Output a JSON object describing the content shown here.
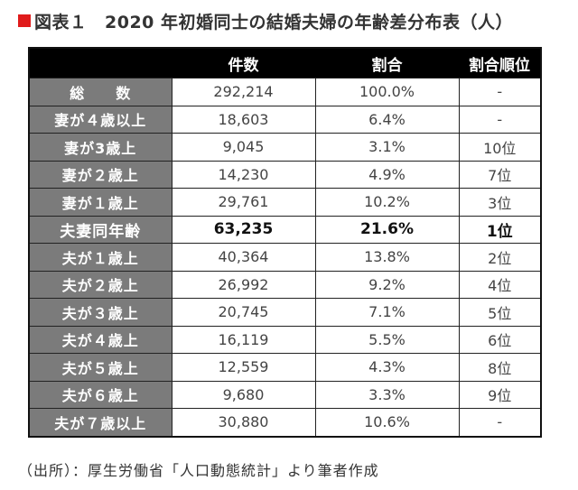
{
  "title": {
    "marker_color": "#e01b1b",
    "text": "図表１　2020 年初婚同士の結婚夫婦の年齢差分布表（人）"
  },
  "table": {
    "headers": [
      "",
      "件数",
      "割合",
      "割合順位"
    ],
    "rows": [
      {
        "label": "総　　数",
        "count": "292,214",
        "ratio": "100.0%",
        "rank": "-"
      },
      {
        "label": "妻が４歳以上",
        "count": "18,603",
        "ratio": "6.4%",
        "rank": "-"
      },
      {
        "label": "妻が3歳上",
        "count": "9,045",
        "ratio": "3.1%",
        "rank": "10位"
      },
      {
        "label": "妻が２歳上",
        "count": "14,230",
        "ratio": "4.9%",
        "rank": "7位"
      },
      {
        "label": "妻が１歳上",
        "count": "29,761",
        "ratio": "10.2%",
        "rank": "3位"
      },
      {
        "label": "夫妻同年齢",
        "count": "63,235",
        "ratio": "21.6%",
        "rank": "1位",
        "highlight": true
      },
      {
        "label": "夫が１歳上",
        "count": "40,364",
        "ratio": "13.8%",
        "rank": "2位"
      },
      {
        "label": "夫が２歳上",
        "count": "26,992",
        "ratio": "9.2%",
        "rank": "4位"
      },
      {
        "label": "夫が３歳上",
        "count": "20,745",
        "ratio": "7.1%",
        "rank": "5位"
      },
      {
        "label": "夫が４歳上",
        "count": "16,119",
        "ratio": "5.5%",
        "rank": "6位"
      },
      {
        "label": "夫が５歳上",
        "count": "12,559",
        "ratio": "4.3%",
        "rank": "8位"
      },
      {
        "label": "夫が６歳上",
        "count": "9,680",
        "ratio": "3.3%",
        "rank": "9位"
      },
      {
        "label": "夫が７歳以上",
        "count": "30,880",
        "ratio": "10.6%",
        "rank": "-"
      }
    ]
  },
  "source": "（出所）：厚生労働省「人口動態統計」より筆者作成"
}
